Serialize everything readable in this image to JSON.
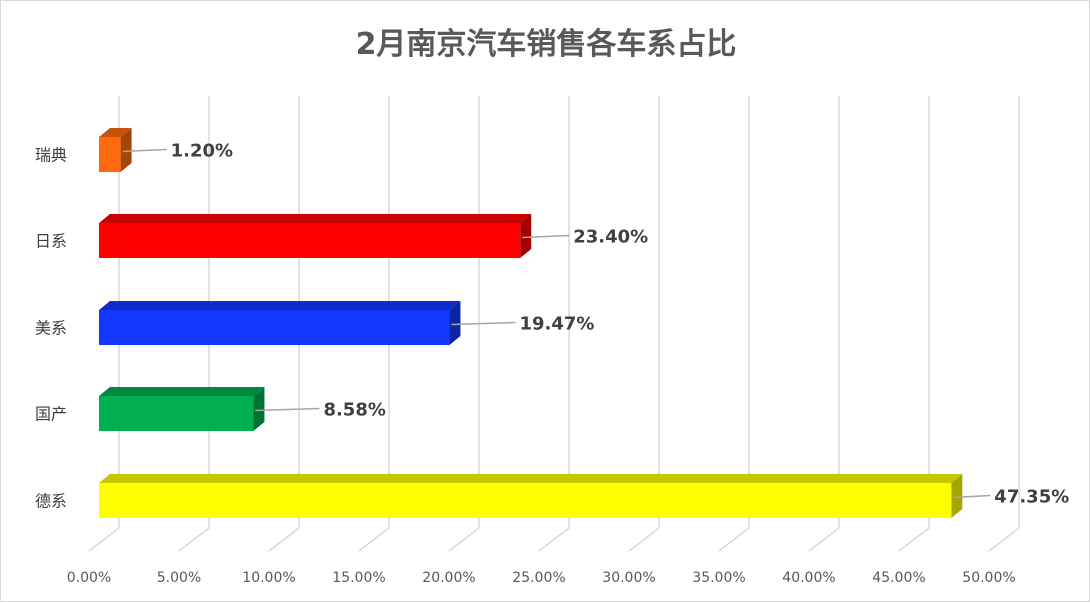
{
  "chart_data": {
    "type": "bar",
    "orientation": "horizontal",
    "style": "3d",
    "title": "2月南京汽车销售各车系占比",
    "categories": [
      "瑞典",
      "日系",
      "美系",
      "国产",
      "德系"
    ],
    "values": [
      1.2,
      23.4,
      19.47,
      8.58,
      47.35
    ],
    "data_labels": [
      "1.20%",
      "23.40%",
      "19.47%",
      "8.58%",
      "47.35%"
    ],
    "colors": [
      "#FF6A0E",
      "#FF0000",
      "#1238FF",
      "#00B050",
      "#FFFF00"
    ],
    "xlim": [
      0,
      50
    ],
    "x_ticks": [
      "0.00%",
      "5.00%",
      "10.00%",
      "15.00%",
      "20.00%",
      "25.00%",
      "30.00%",
      "35.00%",
      "40.00%",
      "45.00%",
      "50.00%"
    ],
    "grid": true,
    "legend": "none",
    "xlabel": "",
    "ylabel": ""
  }
}
